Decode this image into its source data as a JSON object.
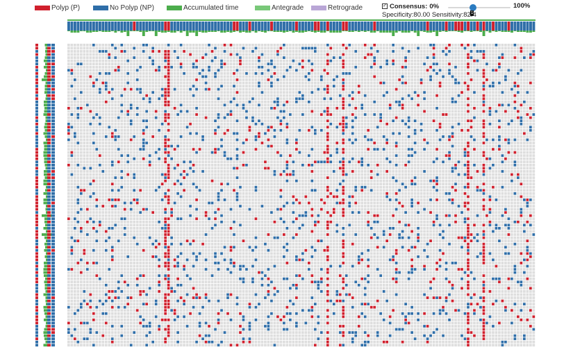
{
  "legend": {
    "items": [
      {
        "label": "Polyp (P)",
        "color": "#d0202d"
      },
      {
        "label": "No Polyp (NP)",
        "color": "#2f6ea8"
      },
      {
        "label": "Accumulated time",
        "color": "#4cad4c"
      },
      {
        "label": "Antegrade",
        "color": "#79c879"
      },
      {
        "label": "Retrograde",
        "color": "#b9a6d6"
      }
    ]
  },
  "consensus": {
    "checked": true,
    "label": "Consensus:",
    "value": "0%",
    "max_label": "100%",
    "level": 0.4,
    "specificity_label": "Specificity:",
    "specificity": "80.00",
    "sensitivity_label": "Sensitivity:",
    "sensitivity": "82.4",
    "thumb_tip": "1"
  },
  "colors": {
    "polyp": "#d0202d",
    "no_polyp": "#2f6ea8",
    "accumulated": "#4cad4c",
    "cell_empty": "#dedede"
  },
  "matrix": {
    "columns": 150,
    "rows": 96,
    "red_heavy_columns": [
      31,
      32,
      83,
      88,
      128,
      133
    ]
  }
}
